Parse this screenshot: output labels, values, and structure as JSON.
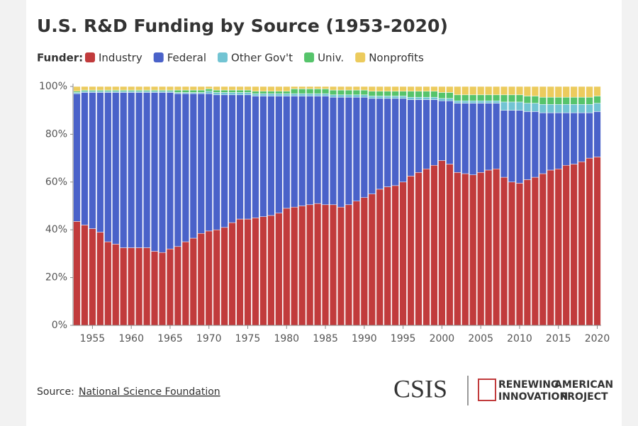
{
  "chart_data": {
    "type": "stacked_bar",
    "title": "U.S. R&D Funding by Source (1953-2020)",
    "legend_title": "Funder:",
    "x": [
      1953,
      1954,
      1955,
      1956,
      1957,
      1958,
      1959,
      1960,
      1961,
      1962,
      1963,
      1964,
      1965,
      1966,
      1967,
      1968,
      1969,
      1970,
      1971,
      1972,
      1973,
      1974,
      1975,
      1976,
      1977,
      1978,
      1979,
      1980,
      1981,
      1982,
      1983,
      1984,
      1985,
      1986,
      1987,
      1988,
      1989,
      1990,
      1991,
      1992,
      1993,
      1994,
      1995,
      1996,
      1997,
      1998,
      1999,
      2000,
      2001,
      2002,
      2003,
      2004,
      2005,
      2006,
      2007,
      2008,
      2009,
      2010,
      2011,
      2012,
      2013,
      2014,
      2015,
      2016,
      2017,
      2018,
      2019,
      2020
    ],
    "xlim": [
      1952.5,
      2020.5
    ],
    "xticks": [
      1955,
      1960,
      1965,
      1970,
      1975,
      1980,
      1985,
      1990,
      1995,
      2000,
      2005,
      2010,
      2015,
      2020
    ],
    "ylim": [
      0,
      100
    ],
    "yticks": [
      {
        "value": 0,
        "label": "0%"
      },
      {
        "value": 20,
        "label": "20%"
      },
      {
        "value": 40,
        "label": "40%"
      },
      {
        "value": 60,
        "label": "60%"
      },
      {
        "value": 80,
        "label": "80%"
      },
      {
        "value": 100,
        "label": "100%"
      }
    ],
    "series": [
      {
        "name": "Industry",
        "color": "#c13b3c",
        "values": [
          43.5,
          42,
          40.5,
          39,
          35,
          34,
          32.5,
          32.5,
          32.5,
          32.5,
          31,
          30.5,
          32,
          33,
          35,
          36.5,
          38.5,
          39.5,
          40,
          41,
          43,
          44.5,
          44.5,
          45,
          45.5,
          46,
          47,
          49,
          49.5,
          50,
          50.5,
          51,
          50.5,
          50.5,
          49.5,
          50.5,
          52,
          53.5,
          55,
          57,
          58,
          58.5,
          60,
          62.5,
          64,
          65.5,
          67,
          69,
          67.5,
          64,
          63.5,
          63,
          64,
          65,
          65.5,
          62,
          60,
          59.5,
          61,
          62,
          63.5,
          65,
          65.5,
          67,
          67.5,
          68.5,
          70,
          70.5
        ]
      },
      {
        "name": "Federal",
        "color": "#4a62c9",
        "values": [
          53.5,
          55.5,
          57,
          58.5,
          62.5,
          63.5,
          65,
          65,
          65,
          65,
          66.5,
          67,
          65.5,
          64,
          62,
          60.5,
          58.5,
          57.5,
          56.5,
          55.5,
          53.5,
          52,
          52,
          51,
          50.5,
          50,
          49,
          47,
          46.5,
          46,
          45.5,
          45,
          45.5,
          45,
          46,
          45,
          43.5,
          42,
          40,
          38,
          37,
          36.5,
          35,
          32,
          30.5,
          29,
          27.5,
          25,
          26.5,
          29,
          29.5,
          30,
          29,
          28,
          27.5,
          28,
          30,
          30.5,
          28.5,
          27.5,
          25.5,
          24,
          23.5,
          22,
          21.5,
          20.5,
          19,
          19
        ]
      },
      {
        "name": "Other Gov't",
        "color": "#72c4d3",
        "values": [
          0.5,
          0.5,
          0.5,
          0.5,
          0.5,
          0.5,
          0.5,
          0.5,
          0.5,
          0.5,
          0.5,
          0.5,
          0.5,
          0.5,
          0.5,
          0.5,
          0.5,
          1,
          1,
          1,
          1,
          1,
          1,
          1,
          1,
          1,
          1,
          1,
          1,
          1,
          1,
          1,
          1,
          1,
          1,
          1,
          1,
          1,
          1,
          1,
          1,
          1,
          1,
          1,
          1,
          1,
          1,
          1,
          1,
          1,
          1,
          1,
          1,
          1,
          1,
          3.5,
          3.5,
          3.5,
          3.5,
          3.5,
          3.5,
          3.5,
          3.5,
          3.5,
          3.5,
          3.5,
          3.5,
          3.5
        ]
      },
      {
        "name": "Univ.",
        "color": "#56c46b",
        "values": [
          0.5,
          0.5,
          0.5,
          0.5,
          0.5,
          0.5,
          0.5,
          0.5,
          0.5,
          0.5,
          0.5,
          0.5,
          0.5,
          1,
          1,
          1,
          1,
          1,
          1,
          1,
          1,
          1,
          1,
          1,
          1,
          1,
          1,
          1,
          2,
          2,
          2,
          2,
          2,
          2,
          2,
          2,
          2,
          2,
          2,
          2,
          2,
          2,
          2,
          2.5,
          2.5,
          2.5,
          2.5,
          2.5,
          2.5,
          2.5,
          2.5,
          2.5,
          2.5,
          2.5,
          2.5,
          3,
          3,
          3,
          3,
          3,
          3,
          3,
          3,
          3,
          3,
          3,
          3,
          3
        ]
      },
      {
        "name": "Nonprofits",
        "color": "#eccb5d",
        "values": [
          2,
          1.5,
          1.5,
          1.5,
          1.5,
          1.5,
          1.5,
          1.5,
          1.5,
          1.5,
          1.5,
          1.5,
          1.5,
          1.5,
          1.5,
          1.5,
          1.5,
          1,
          1.5,
          1.5,
          1.5,
          1.5,
          1.5,
          2,
          2,
          2,
          2,
          2,
          1,
          1,
          1,
          1,
          1,
          1.5,
          1.5,
          1.5,
          1.5,
          1.5,
          2,
          2,
          2,
          2,
          2,
          2,
          2,
          2,
          2,
          2.5,
          2.5,
          3.5,
          3.5,
          3.5,
          3.5,
          3.5,
          3.5,
          3.5,
          3.5,
          3.5,
          4,
          4,
          4.5,
          4.5,
          4.5,
          4.5,
          4.5,
          4.5,
          4.5,
          4
        ]
      }
    ],
    "source_label": "Source:",
    "source_name": "National Science Foundation",
    "logo_main": "CSIS",
    "logo_line1a": "RENEWING",
    "logo_line1b": "AMERICAN",
    "logo_line2a": "INNOVATION",
    "logo_line2b": "PROJECT"
  }
}
